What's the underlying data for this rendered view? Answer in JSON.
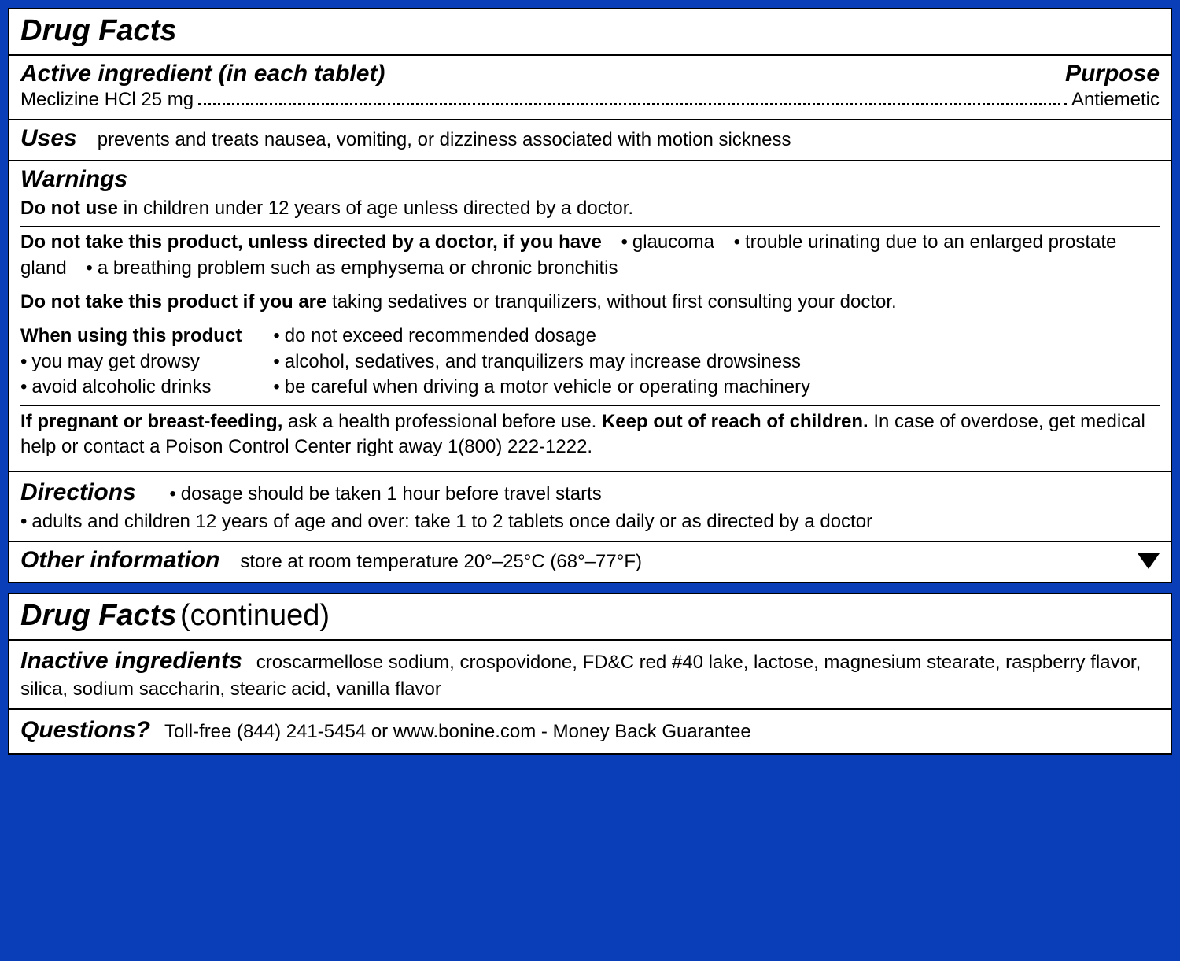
{
  "panel1": {
    "title": "Drug Facts",
    "active": {
      "heading_left": "Active ingredient (in each tablet)",
      "heading_right": "Purpose",
      "ingredient": "Meclizine HCl 25 mg",
      "purpose": "Antiemetic"
    },
    "uses": {
      "heading": "Uses",
      "text": "prevents and treats nausea, vomiting, or dizziness associated with motion sickness"
    },
    "warnings": {
      "heading": "Warnings",
      "do_not_use": {
        "bold": "Do not use",
        "rest": " in children under 12 years of age unless directed by a doctor."
      },
      "do_not_take_if_have": {
        "bold": "Do not take this product, unless directed by a doctor, if you have",
        "items": [
          "glaucoma",
          "trouble urinating due to an enlarged prostate gland",
          "a breathing problem such as emphysema or chronic bronchitis"
        ]
      },
      "do_not_take_if_are": {
        "bold": "Do not take this product if you are",
        "rest": " taking sedatives or tranquilizers, without first consulting your doctor."
      },
      "when_using": {
        "bold": "When using this product",
        "col1": [
          "you may get drowsy",
          "avoid alcoholic drinks"
        ],
        "col2": [
          "do not exceed recommended dosage",
          "alcohol, sedatives, and tranquilizers may increase drowsiness",
          "be careful when driving a motor vehicle or operating machinery"
        ]
      },
      "pregnant": {
        "bold1": "If pregnant or breast-feeding,",
        "mid": " ask a health professional before use. ",
        "bold2": "Keep out of reach of children.",
        "rest": " In case of overdose, get medical help or contact a Poison Control Center right away 1(800) 222-1222."
      }
    },
    "directions": {
      "heading": "Directions",
      "items": [
        "dosage should be taken 1 hour before travel starts",
        "adults and children 12 years of age and over: take 1 to 2 tablets once daily or as directed by a doctor"
      ]
    },
    "other": {
      "heading": "Other information",
      "text": "store at room temperature 20°–25°C (68°–77°F)"
    }
  },
  "panel2": {
    "title": "Drug Facts",
    "cont": "(continued)",
    "inactive": {
      "heading": "Inactive ingredients",
      "text": "croscarmellose sodium, crospovidone, FD&C red #40 lake, lactose, magnesium stearate, raspberry flavor, silica, sodium saccharin, stearic acid, vanilla flavor"
    },
    "questions": {
      "heading": "Questions?",
      "text": "Toll-free (844) 241-5454 or www.bonine.com - Money Back Guarantee"
    }
  }
}
